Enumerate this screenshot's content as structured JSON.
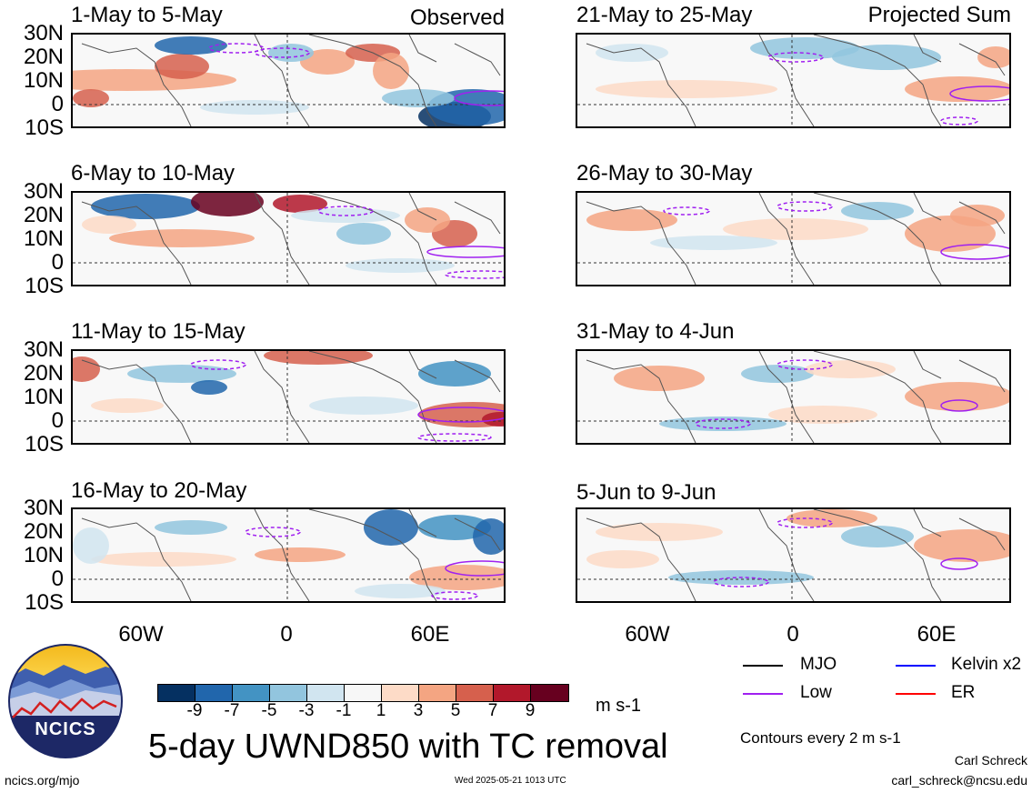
{
  "panels": {
    "left": [
      {
        "title": "1-May to 5-May",
        "corner": "Observed"
      },
      {
        "title": "6-May to 10-May",
        "corner": ""
      },
      {
        "title": "11-May to 15-May",
        "corner": ""
      },
      {
        "title": "16-May to 20-May",
        "corner": ""
      }
    ],
    "right": [
      {
        "title": "21-May to 25-May",
        "corner": "Projected Sum"
      },
      {
        "title": "26-May to 30-May",
        "corner": ""
      },
      {
        "title": "31-May to 4-Jun",
        "corner": ""
      },
      {
        "title": "5-Jun to 9-Jun",
        "corner": ""
      }
    ]
  },
  "lat_labels": [
    "30N",
    "20N",
    "10N",
    "0",
    "10S"
  ],
  "lon_labels": [
    "60W",
    "0",
    "60E"
  ],
  "colorbar": {
    "colors": [
      "#053061",
      "#2166ac",
      "#4393c3",
      "#92c5de",
      "#d1e5f0",
      "#f7f7f7",
      "#fddbc7",
      "#f4a582",
      "#d6604d",
      "#b2182b",
      "#67001f"
    ],
    "ticks": [
      "-9",
      "-7",
      "-5",
      "-3",
      "-1",
      "1",
      "3",
      "5",
      "7",
      "9"
    ],
    "units": "m s-1"
  },
  "title": "5-day UWND850 with TC removal",
  "legend": [
    {
      "label": "MJO",
      "color": "#000000"
    },
    {
      "label": "Kelvin x2",
      "color": "#0000ff"
    },
    {
      "label": "Low",
      "color": "#a020f0"
    },
    {
      "label": "ER",
      "color": "#ff0000"
    }
  ],
  "contour_note": "Contours every 2 m s-1",
  "author": "Carl Schreck",
  "email": "carl_schreck@ncsu.edu",
  "logo_text": "NCICS",
  "site": "ncics.org/mjo",
  "timestamp": "Wed 2025-05-21 1013 UTC"
}
